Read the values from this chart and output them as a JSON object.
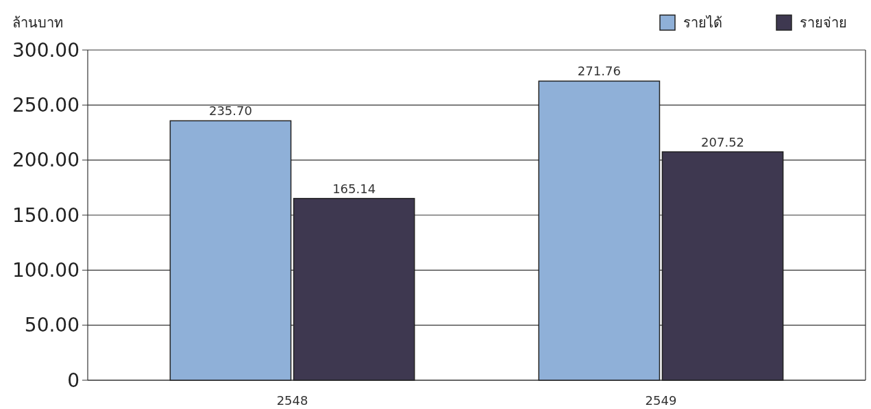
{
  "chart_data": {
    "type": "bar",
    "ylabel": "ล้านบาท",
    "categories": [
      "2548",
      "2549"
    ],
    "series": [
      {
        "name": "รายได้",
        "color": "#8fb0d8",
        "values": [
          235.7,
          271.76
        ]
      },
      {
        "name": "รายจ่าย",
        "color": "#3e3850",
        "values": [
          165.14,
          207.52
        ]
      }
    ],
    "ylim": [
      0,
      300
    ],
    "yticks": [
      0,
      {
        "value": 50,
        "label": "50.00"
      },
      {
        "value": 100,
        "label": "100.00"
      },
      {
        "value": 150,
        "label": "150.00"
      },
      {
        "value": 200,
        "label": "200.00"
      },
      {
        "value": 250,
        "label": "250.00"
      },
      {
        "value": 300,
        "label": "300.00"
      }
    ],
    "value_labels": [
      [
        "235.70",
        "271.76"
      ],
      [
        "165.14",
        "207.52"
      ]
    ],
    "grid": "y",
    "legend": "top right"
  }
}
